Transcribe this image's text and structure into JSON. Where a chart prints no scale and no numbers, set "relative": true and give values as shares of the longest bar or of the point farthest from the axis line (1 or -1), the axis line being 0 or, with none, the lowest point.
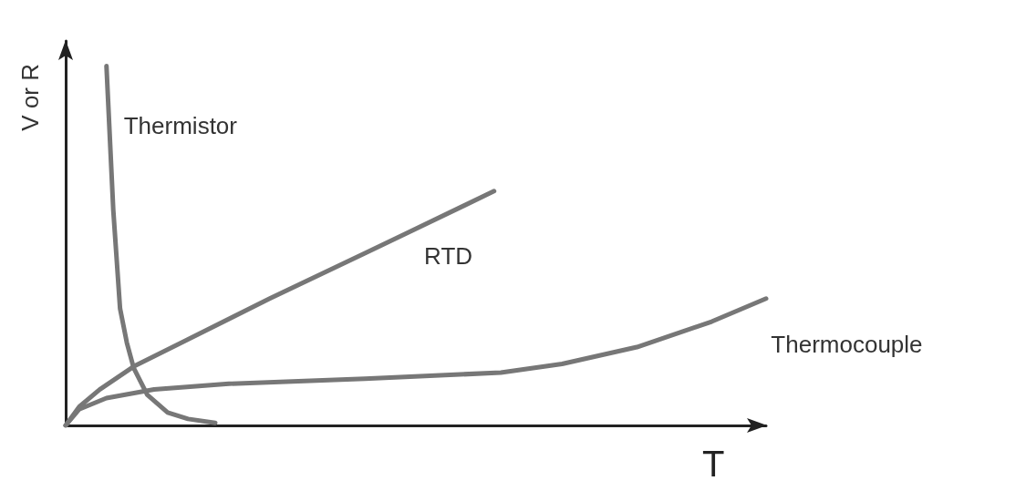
{
  "chart_data": {
    "type": "line",
    "relative": true,
    "xlabel": "T",
    "ylabel": "V or R",
    "legend": false,
    "grid": false,
    "marker": "none",
    "line_style": "solid",
    "categories": [
      null,
      null,
      null,
      null,
      null,
      null,
      null,
      null,
      null,
      null,
      null,
      null,
      null,
      null,
      null,
      null,
      null,
      null,
      null,
      null,
      null,
      null,
      null,
      null,
      null,
      null,
      null,
      null,
      null,
      null,
      null,
      null,
      null,
      null,
      null,
      null,
      null,
      null,
      null,
      null,
      null,
      null,
      null,
      null,
      null,
      null,
      null,
      null,
      null,
      null,
      null,
      null,
      null,
      null,
      null,
      null,
      null,
      null,
      null,
      null,
      null,
      null,
      null,
      null,
      null,
      null,
      null,
      null,
      null,
      null,
      null,
      null,
      null,
      null,
      null,
      null,
      null,
      null,
      null,
      null,
      null,
      null,
      null,
      null,
      null,
      null,
      null,
      null,
      null,
      null,
      null,
      null,
      null,
      null,
      null,
      null,
      null,
      null,
      null,
      null,
      null,
      null,
      null,
      null
    ],
    "series": [
      {
        "name": "Thermistor",
        "color": "#777777",
        "values": [
          null,
          null,
          null,
          null,
          null,
          null,
          1,
          0.6,
          0.325,
          0.23,
          0.16,
          null,
          0.085,
          null,
          null,
          0.036,
          null,
          null,
          0.018,
          null,
          null,
          null,
          0.007,
          null,
          null,
          null,
          null,
          null,
          null,
          null,
          null,
          null,
          null,
          null,
          null,
          null,
          null,
          null,
          null,
          null,
          null,
          null,
          null,
          null,
          null,
          null,
          null,
          null,
          null,
          null,
          null,
          null,
          null,
          null,
          null,
          null,
          null,
          null,
          null,
          null,
          null,
          null,
          null,
          null,
          null,
          null,
          null,
          null,
          null,
          null,
          null,
          null,
          null,
          null,
          null,
          null,
          null,
          null,
          null,
          null,
          null,
          null,
          null,
          null,
          null,
          null,
          null,
          null,
          null,
          null,
          null,
          null,
          null,
          null,
          null,
          null,
          null,
          null,
          null,
          null,
          null,
          null,
          null,
          null
        ]
      },
      {
        "name": "RTD",
        "color": "#777777",
        "values": [
          0,
          null,
          0.052,
          null,
          null,
          0.1,
          null,
          null,
          null,
          null,
          0.164,
          null,
          null,
          null,
          null,
          null,
          null,
          0.23,
          null,
          null,
          null,
          null,
          null,
          null,
          null,
          null,
          null,
          null,
          null,
          null,
          0.353,
          null,
          null,
          null,
          null,
          null,
          null,
          null,
          null,
          null,
          null,
          null,
          null,
          null,
          0.479,
          null,
          null,
          null,
          null,
          null,
          null,
          null,
          null,
          null,
          null,
          null,
          null,
          null,
          null,
          null,
          null,
          null,
          null,
          0.652,
          null,
          null,
          null,
          null,
          null,
          null,
          null,
          null,
          null,
          null,
          null,
          null,
          null,
          null,
          null,
          null,
          null,
          null,
          null,
          null,
          null,
          null,
          null,
          null,
          null,
          null,
          null,
          null,
          null,
          null,
          null,
          null,
          null,
          null,
          null,
          null,
          null,
          null,
          null,
          null
        ]
      },
      {
        "name": "Thermocouple",
        "color": "#777777",
        "values": [
          0,
          null,
          0.045,
          null,
          null,
          null,
          0.076,
          null,
          null,
          null,
          null,
          null,
          null,
          0.1,
          null,
          null,
          null,
          null,
          null,
          null,
          null,
          null,
          null,
          null,
          0.116,
          null,
          null,
          null,
          null,
          null,
          null,
          null,
          null,
          null,
          null,
          null,
          null,
          null,
          null,
          null,
          null,
          null,
          null,
          null,
          0.13,
          null,
          null,
          null,
          null,
          null,
          null,
          null,
          null,
          null,
          null,
          null,
          null,
          null,
          null,
          null,
          null,
          null,
          null,
          null,
          0.147,
          null,
          null,
          null,
          null,
          null,
          null,
          null,
          null,
          0.171,
          null,
          null,
          null,
          null,
          null,
          null,
          null,
          null,
          null,
          null,
          0.218,
          null,
          null,
          null,
          null,
          null,
          null,
          null,
          null,
          null,
          null,
          0.289,
          null,
          null,
          null,
          null,
          null,
          null,
          null,
          0.353
        ]
      }
    ]
  }
}
